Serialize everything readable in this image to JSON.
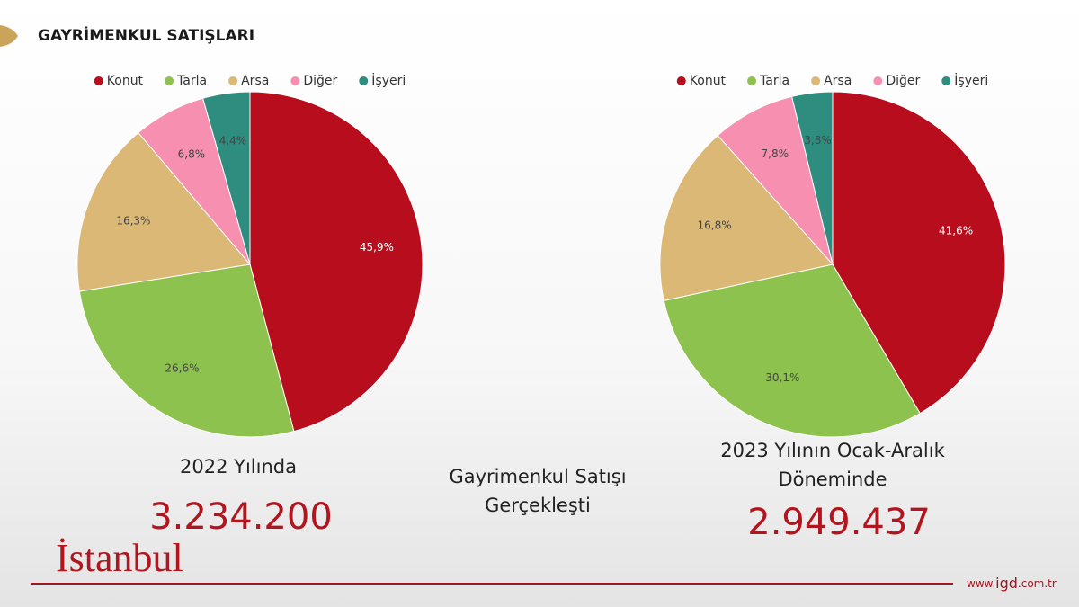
{
  "slide": {
    "title": "GAYRİMENKUL SATIŞLARI",
    "left_caption": "2022 Yılında",
    "left_number": "3.234.200",
    "middle_caption": [
      "Gayrimenkul Satışı",
      "Gerçekleşti"
    ],
    "right_caption": [
      "2023 Yılının Ocak-Aralık",
      "Döneminde"
    ],
    "right_number": "2.949.437",
    "logo": "İstanbul",
    "footer": [
      "www.",
      "igd",
      ".com.tr"
    ]
  },
  "chart_data": [
    {
      "type": "pie",
      "categories": [
        "Konut",
        "Tarla",
        "Arsa",
        "Diğer",
        "İşyeri"
      ],
      "values": [
        45.9,
        26.6,
        16.3,
        6.8,
        4.4
      ],
      "value_labels": [
        "45,9%",
        "26,6%",
        "16,3%",
        "6,8%",
        "4,4%"
      ],
      "colors": [
        "#b70d1d",
        "#8ec24f",
        "#dbb876",
        "#f790b0",
        "#2f8d80"
      ],
      "legend": "top"
    },
    {
      "type": "pie",
      "categories": [
        "Konut",
        "Tarla",
        "Arsa",
        "Diğer",
        "İşyeri"
      ],
      "values": [
        41.6,
        30.1,
        16.8,
        7.8,
        3.8
      ],
      "value_labels": [
        "41,6%",
        "30,1%",
        "16,8%",
        "7,8%",
        "3,8%"
      ],
      "colors": [
        "#b70d1d",
        "#8ec24f",
        "#dbb876",
        "#f790b0",
        "#2f8d80"
      ],
      "legend": "top"
    }
  ]
}
